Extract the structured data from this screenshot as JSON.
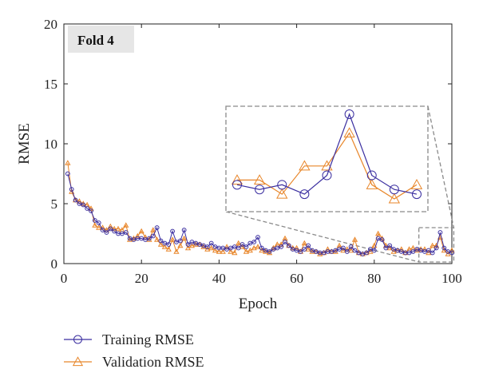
{
  "colors": {
    "training": "#3b2fa0",
    "validation": "#e8862a",
    "zoom_box": "#8a8a8a",
    "label_bg": "#e6e6e6"
  },
  "chart_data": {
    "type": "line",
    "panel_label": "Fold 4",
    "xlabel": "Epoch",
    "ylabel": "RMSE",
    "xlim": [
      0,
      100
    ],
    "ylim": [
      0,
      20
    ],
    "x_ticks": [
      0,
      20,
      40,
      60,
      80,
      100
    ],
    "y_ticks": [
      0,
      5,
      10,
      15,
      20
    ],
    "grid": false,
    "legend_position": "bottom-left",
    "x": [
      1,
      2,
      3,
      4,
      5,
      6,
      7,
      8,
      9,
      10,
      11,
      12,
      13,
      14,
      15,
      16,
      17,
      18,
      19,
      20,
      21,
      22,
      23,
      24,
      25,
      26,
      27,
      28,
      29,
      30,
      31,
      32,
      33,
      34,
      35,
      36,
      37,
      38,
      39,
      40,
      41,
      42,
      43,
      44,
      45,
      46,
      47,
      48,
      49,
      50,
      51,
      52,
      53,
      54,
      55,
      56,
      57,
      58,
      59,
      60,
      61,
      62,
      63,
      64,
      65,
      66,
      67,
      68,
      69,
      70,
      71,
      72,
      73,
      74,
      75,
      76,
      77,
      78,
      79,
      80,
      81,
      82,
      83,
      84,
      85,
      86,
      87,
      88,
      89,
      90,
      91,
      92,
      93,
      94,
      95,
      96,
      97,
      98,
      99,
      100
    ],
    "series": [
      {
        "name": "Training RMSE",
        "marker": "circle",
        "values": [
          7.5,
          6.2,
          5.3,
          5.0,
          4.9,
          4.6,
          4.4,
          3.6,
          3.4,
          2.8,
          2.6,
          2.9,
          2.7,
          2.5,
          2.5,
          2.6,
          2.1,
          2.0,
          2.1,
          2.1,
          2.0,
          2.1,
          2.3,
          3.0,
          1.9,
          1.7,
          1.6,
          2.7,
          1.8,
          1.9,
          2.8,
          1.6,
          1.8,
          1.7,
          1.6,
          1.5,
          1.4,
          1.7,
          1.4,
          1.3,
          1.3,
          1.2,
          1.3,
          1.4,
          1.3,
          1.6,
          1.4,
          1.7,
          1.8,
          2.2,
          1.3,
          1.1,
          1.0,
          1.2,
          1.3,
          1.4,
          1.8,
          1.5,
          1.2,
          1.1,
          1.0,
          1.2,
          1.5,
          1.1,
          1.0,
          0.9,
          0.9,
          1.0,
          1.0,
          1.1,
          1.2,
          1.3,
          1.0,
          1.4,
          1.1,
          0.9,
          0.8,
          0.9,
          1.2,
          1.1,
          2.1,
          2.0,
          1.3,
          1.5,
          1.2,
          1.1,
          1.0,
          0.9,
          0.9,
          1.0,
          1.2,
          1.1,
          1.0,
          1.1,
          0.9,
          1.3,
          2.6,
          1.3,
          1.0,
          0.9
        ]
      },
      {
        "name": "Validation RMSE",
        "marker": "triangle",
        "values": [
          8.4,
          6.0,
          5.3,
          5.2,
          5.0,
          4.9,
          4.6,
          3.2,
          3.0,
          3.0,
          2.8,
          3.1,
          2.9,
          2.9,
          2.8,
          3.2,
          2.0,
          2.1,
          2.3,
          2.7,
          2.2,
          2.0,
          2.8,
          2.0,
          1.6,
          1.4,
          1.2,
          2.0,
          1.0,
          1.5,
          2.1,
          1.3,
          1.5,
          1.6,
          1.6,
          1.4,
          1.2,
          1.3,
          1.1,
          1.0,
          1.0,
          1.4,
          1.0,
          0.9,
          1.7,
          1.4,
          1.0,
          1.1,
          1.3,
          1.4,
          1.1,
          1.0,
          0.9,
          1.3,
          1.6,
          1.6,
          2.1,
          1.5,
          1.3,
          1.3,
          1.0,
          1.7,
          1.2,
          1.0,
          1.0,
          0.8,
          0.9,
          1.2,
          1.0,
          1.0,
          1.5,
          1.1,
          1.2,
          1.1,
          2.0,
          0.9,
          0.8,
          0.9,
          1.0,
          1.5,
          2.5,
          2.1,
          1.5,
          1.3,
          1.0,
          1.1,
          1.2,
          0.9,
          1.2,
          1.3,
          1.1,
          1.2,
          1.2,
          0.9,
          1.5,
          1.5,
          2.2,
          1.1,
          0.8,
          1.1
        ]
      }
    ],
    "inset": {
      "x_range": [
        92,
        100
      ],
      "zoom_region_ylim": [
        0,
        3.0
      ]
    }
  }
}
